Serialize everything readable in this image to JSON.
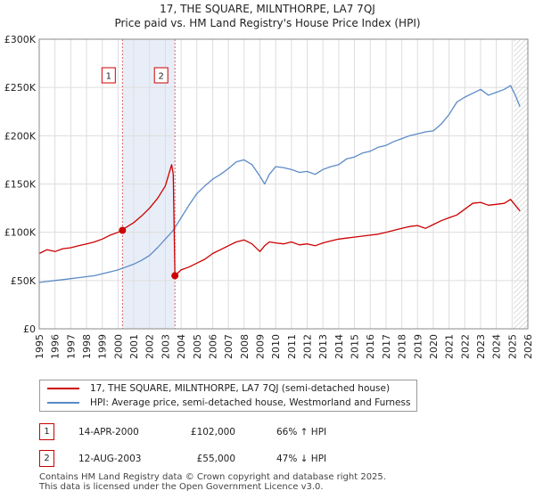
{
  "title_line1": "17, THE SQUARE, MILNTHORPE, LA7 7QJ",
  "title_line2": "Price paid vs. HM Land Registry's House Price Index (HPI)",
  "chart_data": {
    "type": "line",
    "xlim": [
      1995,
      2026
    ],
    "ylim": [
      0,
      300000
    ],
    "y_ticks": [
      0,
      50000,
      100000,
      150000,
      200000,
      250000,
      300000
    ],
    "y_tick_labels": [
      "£0",
      "£50K",
      "£100K",
      "£150K",
      "£200K",
      "£250K",
      "£300K"
    ],
    "x_ticks": [
      1995,
      1996,
      1997,
      1998,
      1999,
      2000,
      2001,
      2002,
      2003,
      2004,
      2005,
      2006,
      2007,
      2008,
      2009,
      2010,
      2011,
      2012,
      2013,
      2014,
      2015,
      2016,
      2017,
      2018,
      2019,
      2020,
      2021,
      2022,
      2023,
      2024,
      2025,
      2026
    ],
    "x_tick_labels": [
      "1995",
      "1996",
      "1997",
      "1998",
      "1999",
      "2000",
      "2001",
      "2002",
      "2003",
      "2004",
      "2005",
      "2006",
      "2007",
      "2008",
      "2009",
      "2010",
      "2011",
      "2012",
      "2013",
      "2014",
      "2015",
      "2016",
      "2017",
      "2018",
      "2019",
      "2020",
      "2021",
      "2022",
      "2023",
      "2024",
      "2025",
      "2026"
    ],
    "grid": true,
    "shaded_band": [
      2000.28,
      2003.61
    ],
    "forecast_start": 2025.1,
    "series": [
      {
        "name": "17, THE SQUARE, MILNTHORPE, LA7 7QJ (semi-detached house)",
        "color": "#cc0000",
        "x": [
          1995.0,
          1995.5,
          1996.0,
          1996.5,
          1997.0,
          1997.5,
          1998.0,
          1998.5,
          1999.0,
          1999.5,
          2000.0,
          2000.28,
          2000.5,
          2001.0,
          2001.5,
          2002.0,
          2002.5,
          2003.0,
          2003.4,
          2003.5,
          2003.61,
          2004.0,
          2004.5,
          2005.0,
          2005.5,
          2006.0,
          2006.5,
          2007.0,
          2007.5,
          2008.0,
          2008.5,
          2009.0,
          2009.3,
          2009.6,
          2010.0,
          2010.5,
          2011.0,
          2011.5,
          2012.0,
          2012.5,
          2013.0,
          2013.5,
          2014.0,
          2014.5,
          2015.0,
          2015.5,
          2016.0,
          2016.5,
          2017.0,
          2017.5,
          2018.0,
          2018.5,
          2019.0,
          2019.5,
          2020.0,
          2020.5,
          2021.0,
          2021.5,
          2022.0,
          2022.5,
          2023.0,
          2023.5,
          2024.0,
          2024.5,
          2024.9,
          2025.2,
          2025.5
        ],
        "y": [
          78000,
          82000,
          80000,
          83000,
          84000,
          86000,
          88000,
          90000,
          93000,
          97000,
          100000,
          102000,
          105000,
          110000,
          117000,
          125000,
          135000,
          148000,
          170000,
          160000,
          55000,
          61000,
          64000,
          68000,
          72000,
          78000,
          82000,
          86000,
          90000,
          92000,
          88000,
          80000,
          86000,
          90000,
          89000,
          88000,
          90000,
          87000,
          88000,
          86000,
          89000,
          91000,
          93000,
          94000,
          95000,
          96000,
          97000,
          98000,
          100000,
          102000,
          104000,
          106000,
          107000,
          104000,
          108000,
          112000,
          115000,
          118000,
          124000,
          130000,
          131000,
          128000,
          129000,
          130000,
          134000,
          128000,
          122000
        ]
      },
      {
        "name": "HPI: Average price, semi-detached house, Westmorland and Furness",
        "color": "#5b8ac7",
        "x": [
          1995.0,
          1995.5,
          1996.0,
          1996.5,
          1997.0,
          1997.5,
          1998.0,
          1998.5,
          1999.0,
          1999.5,
          2000.0,
          2000.5,
          2001.0,
          2001.5,
          2002.0,
          2002.5,
          2003.0,
          2003.5,
          2004.0,
          2004.5,
          2005.0,
          2005.5,
          2006.0,
          2006.5,
          2007.0,
          2007.5,
          2008.0,
          2008.5,
          2009.0,
          2009.3,
          2009.6,
          2010.0,
          2010.5,
          2011.0,
          2011.5,
          2012.0,
          2012.5,
          2013.0,
          2013.5,
          2014.0,
          2014.5,
          2015.0,
          2015.5,
          2016.0,
          2016.5,
          2017.0,
          2017.5,
          2018.0,
          2018.5,
          2019.0,
          2019.5,
          2020.0,
          2020.5,
          2021.0,
          2021.5,
          2022.0,
          2022.5,
          2023.0,
          2023.5,
          2024.0,
          2024.5,
          2024.9,
          2025.2,
          2025.5
        ],
        "y": [
          48000,
          49000,
          50000,
          51000,
          52000,
          53000,
          54000,
          55000,
          57000,
          59000,
          61000,
          64000,
          67000,
          71000,
          76000,
          84000,
          93000,
          102000,
          115000,
          128000,
          140000,
          148000,
          155000,
          160000,
          166000,
          173000,
          175000,
          170000,
          158000,
          150000,
          160000,
          168000,
          167000,
          165000,
          162000,
          163000,
          160000,
          165000,
          168000,
          170000,
          176000,
          178000,
          182000,
          184000,
          188000,
          190000,
          194000,
          197000,
          200000,
          202000,
          204000,
          205000,
          212000,
          222000,
          235000,
          240000,
          244000,
          248000,
          242000,
          245000,
          248000,
          252000,
          242000,
          230000
        ]
      }
    ],
    "sale_markers": [
      {
        "label": "1",
        "x": 2000.28,
        "y": 102000
      },
      {
        "label": "2",
        "x": 2003.61,
        "y": 55000
      }
    ]
  },
  "legend": {
    "property_label": "17, THE SQUARE, MILNTHORPE, LA7 7QJ (semi-detached house)",
    "hpi_label": "HPI: Average price, semi-detached house, Westmorland and Furness",
    "property_color": "#cc0000",
    "hpi_color": "#5b8ac7"
  },
  "sales": [
    {
      "num": "1",
      "date": "14-APR-2000",
      "price": "£102,000",
      "hpi": "66% ↑ HPI"
    },
    {
      "num": "2",
      "date": "12-AUG-2003",
      "price": "£55,000",
      "hpi": "47% ↓ HPI"
    }
  ],
  "footer_line1": "Contains HM Land Registry data © Crown copyright and database right 2025.",
  "footer_line2": "This data is licensed under the Open Government Licence v3.0."
}
